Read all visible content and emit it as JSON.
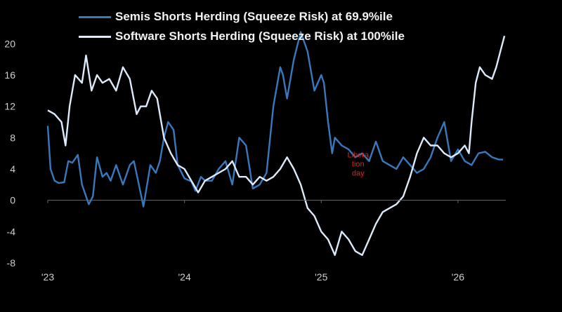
{
  "chart_data": {
    "type": "line",
    "title": "",
    "xlabel": "",
    "ylabel": "",
    "ylim": [
      -8,
      22
    ],
    "xlim": [
      2023.0,
      2026.35
    ],
    "yticks": [
      20,
      16,
      12,
      8,
      4,
      0,
      -4,
      -8
    ],
    "ytick_labels": [
      "20",
      "16",
      "12",
      "8",
      "4",
      "0",
      "-4",
      "-8"
    ],
    "xticks": [
      2023,
      2024,
      2025,
      2026
    ],
    "xtick_labels": [
      "'23",
      "'24",
      "'25",
      "'26"
    ],
    "grid": false,
    "legend_position": "top-left",
    "annotation": {
      "lines": [
        "Libera",
        "tion",
        "day"
      ],
      "x": 2025.27,
      "y": 5.5,
      "color": "#e02020"
    },
    "series": [
      {
        "name": "Semis Shorts Herding (Squeeze Risk) at 69.9%ile",
        "color": "#3a78bd",
        "x": [
          2023.0,
          2023.02,
          2023.05,
          2023.08,
          2023.12,
          2023.15,
          2023.18,
          2023.22,
          2023.25,
          2023.3,
          2023.33,
          2023.36,
          2023.4,
          2023.43,
          2023.46,
          2023.5,
          2023.55,
          2023.6,
          2023.63,
          2023.66,
          2023.7,
          2023.75,
          2023.79,
          2023.82,
          2023.85,
          2023.88,
          2023.92,
          2023.95,
          2024.0,
          2024.05,
          2024.08,
          2024.12,
          2024.15,
          2024.2,
          2024.25,
          2024.3,
          2024.35,
          2024.4,
          2024.45,
          2024.5,
          2024.55,
          2024.6,
          2024.65,
          2024.7,
          2024.72,
          2024.75,
          2024.8,
          2024.85,
          2024.9,
          2024.95,
          2025.0,
          2025.02,
          2025.05,
          2025.08,
          2025.1,
          2025.15,
          2025.2,
          2025.25,
          2025.3,
          2025.35,
          2025.4,
          2025.45,
          2025.5,
          2025.55,
          2025.6,
          2025.65,
          2025.7,
          2025.75,
          2025.8,
          2025.85,
          2025.9,
          2025.95,
          2026.0,
          2026.05,
          2026.1,
          2026.15,
          2026.2,
          2026.25,
          2026.3,
          2026.33
        ],
        "values": [
          9.5,
          4,
          2.5,
          2.2,
          2.3,
          5,
          4.8,
          5.8,
          2,
          -0.5,
          0.5,
          5.5,
          3,
          3.5,
          2.5,
          4.5,
          2,
          4.5,
          5,
          2.5,
          -0.8,
          4.5,
          3.5,
          5,
          8,
          10,
          9,
          4.5,
          2.8,
          2.4,
          1.2,
          3,
          2.5,
          2.5,
          4,
          5,
          2,
          8,
          7,
          1.5,
          2,
          3.5,
          12,
          17,
          16,
          13,
          18,
          21.5,
          19,
          14,
          16,
          15,
          10,
          6,
          8,
          7,
          6.5,
          5.5,
          6,
          5,
          7.5,
          5,
          4.5,
          4,
          5.5,
          4.5,
          3.5,
          4,
          5.5,
          8,
          10,
          5,
          6.5,
          5,
          4.5,
          6,
          6.2,
          5.5,
          5.2,
          5.2
        ]
      },
      {
        "name": "Software Shorts Herding (Squeeze Risk) at 100%ile",
        "color": "#dceafa",
        "x": [
          2023.0,
          2023.05,
          2023.1,
          2023.13,
          2023.16,
          2023.2,
          2023.25,
          2023.28,
          2023.32,
          2023.36,
          2023.4,
          2023.45,
          2023.5,
          2023.55,
          2023.6,
          2023.65,
          2023.68,
          2023.72,
          2023.76,
          2023.8,
          2023.85,
          2023.9,
          2023.95,
          2024.0,
          2024.05,
          2024.1,
          2024.15,
          2024.2,
          2024.3,
          2024.35,
          2024.4,
          2024.45,
          2024.5,
          2024.55,
          2024.6,
          2024.65,
          2024.7,
          2024.75,
          2024.8,
          2024.85,
          2024.9,
          2024.95,
          2025.0,
          2025.05,
          2025.1,
          2025.15,
          2025.2,
          2025.25,
          2025.3,
          2025.35,
          2025.4,
          2025.45,
          2025.5,
          2025.55,
          2025.6,
          2025.65,
          2025.7,
          2025.75,
          2025.8,
          2025.85,
          2025.9,
          2025.95,
          2026.0,
          2026.05,
          2026.08,
          2026.1,
          2026.13,
          2026.16,
          2026.2,
          2026.25,
          2026.28,
          2026.31,
          2026.34
        ],
        "values": [
          11.5,
          11,
          10,
          7,
          12,
          16,
          15,
          18.5,
          14,
          16,
          15,
          15.5,
          14,
          17,
          15.5,
          11,
          12,
          12,
          14,
          13,
          8,
          6,
          4.5,
          4,
          2.5,
          1,
          2.5,
          3,
          4,
          5,
          3,
          3,
          2,
          3,
          2.5,
          3,
          4,
          5.5,
          4,
          2,
          -1,
          -2,
          -4,
          -5,
          -7,
          -4,
          -5,
          -6.5,
          -7,
          -5,
          -3,
          -1.5,
          -1,
          -0.5,
          0.5,
          3,
          6,
          8,
          7,
          7,
          6,
          5.5,
          6,
          7,
          6,
          10,
          15,
          17,
          16,
          15.5,
          17,
          19,
          21
        ]
      }
    ]
  }
}
